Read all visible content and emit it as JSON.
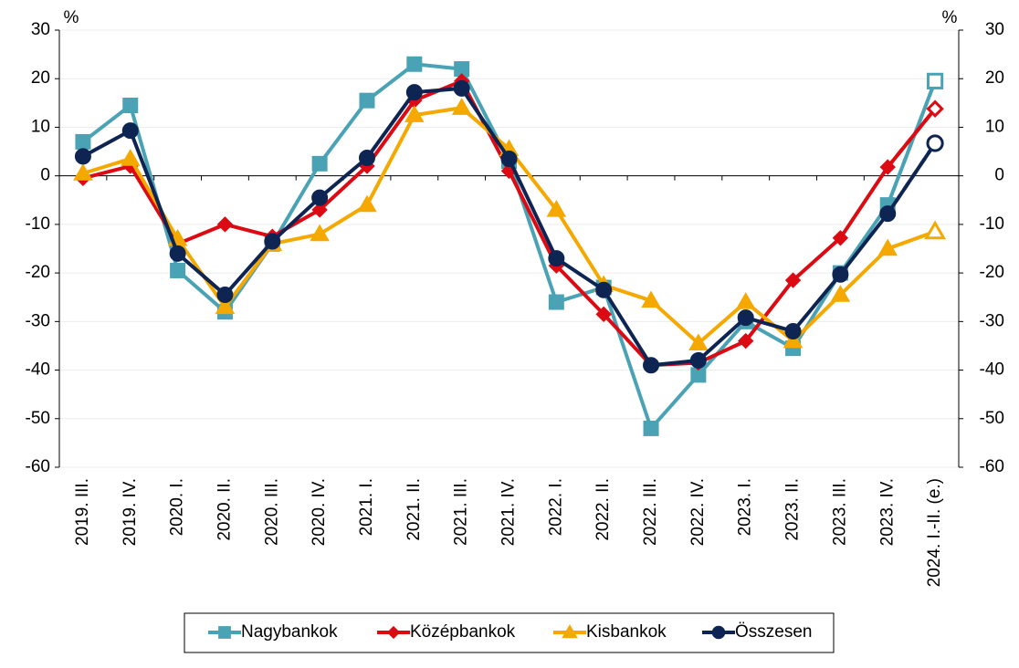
{
  "chart_data": {
    "type": "line",
    "y_unit": "%",
    "y2_unit": "%",
    "categories": [
      "2019. III.",
      "2019. IV.",
      "2020. I.",
      "2020. II.",
      "2020. III.",
      "2020. IV.",
      "2021. I.",
      "2021. II.",
      "2021. III.",
      "2021. IV.",
      "2022. I.",
      "2022. II.",
      "2022. III.",
      "2022. IV.",
      "2023. I.",
      "2023. II.",
      "2023. III.",
      "2023. IV.",
      "2024. I.-II. (e.)"
    ],
    "series": [
      {
        "name": "Nagybankok",
        "color": "#4aa3b5",
        "marker": "square",
        "values": [
          7,
          14.5,
          -19.5,
          -28,
          -14,
          2.5,
          15.5,
          23,
          22,
          3,
          -26,
          -23,
          -52,
          -41,
          -30,
          -35.5,
          -20,
          -6,
          19.5
        ]
      },
      {
        "name": "Középbankok",
        "color": "#dc0a12",
        "marker": "diamond",
        "values": [
          -0.5,
          2,
          -14,
          -10,
          -12.5,
          -7,
          2,
          15.5,
          19.5,
          1,
          -18.5,
          -28.5,
          -39,
          -38.5,
          -34,
          -21.5,
          -12.8,
          1.8,
          13.8
        ]
      },
      {
        "name": "Kisbankok",
        "color": "#f5a800",
        "marker": "triangle",
        "values": [
          0.5,
          3.5,
          -13,
          -27,
          -14,
          -12,
          -6,
          12.5,
          14,
          5.5,
          -7,
          -22.5,
          -25.7,
          -34.5,
          -26,
          -34,
          -24.5,
          -15,
          -11.5
        ]
      },
      {
        "name": "Összesen",
        "color": "#0e2452",
        "marker": "circle",
        "values": [
          4,
          9.3,
          -16,
          -24.5,
          -13.5,
          -4.5,
          3.7,
          17.2,
          18,
          3.5,
          -17,
          -23.5,
          -39,
          -38,
          -29.2,
          -32,
          -20.3,
          -7.8,
          6.7
        ]
      }
    ],
    "dashed_last_segment": true,
    "ylim": [
      -60,
      30
    ],
    "yticks": [
      -60,
      -50,
      -40,
      -30,
      -20,
      -10,
      0,
      10,
      20,
      30
    ],
    "y2lim": [
      -60,
      30
    ],
    "y2ticks": [
      -60,
      -50,
      -40,
      -30,
      -20,
      -10,
      0,
      10,
      20,
      30
    ],
    "grid": true,
    "legend": "bottom"
  }
}
